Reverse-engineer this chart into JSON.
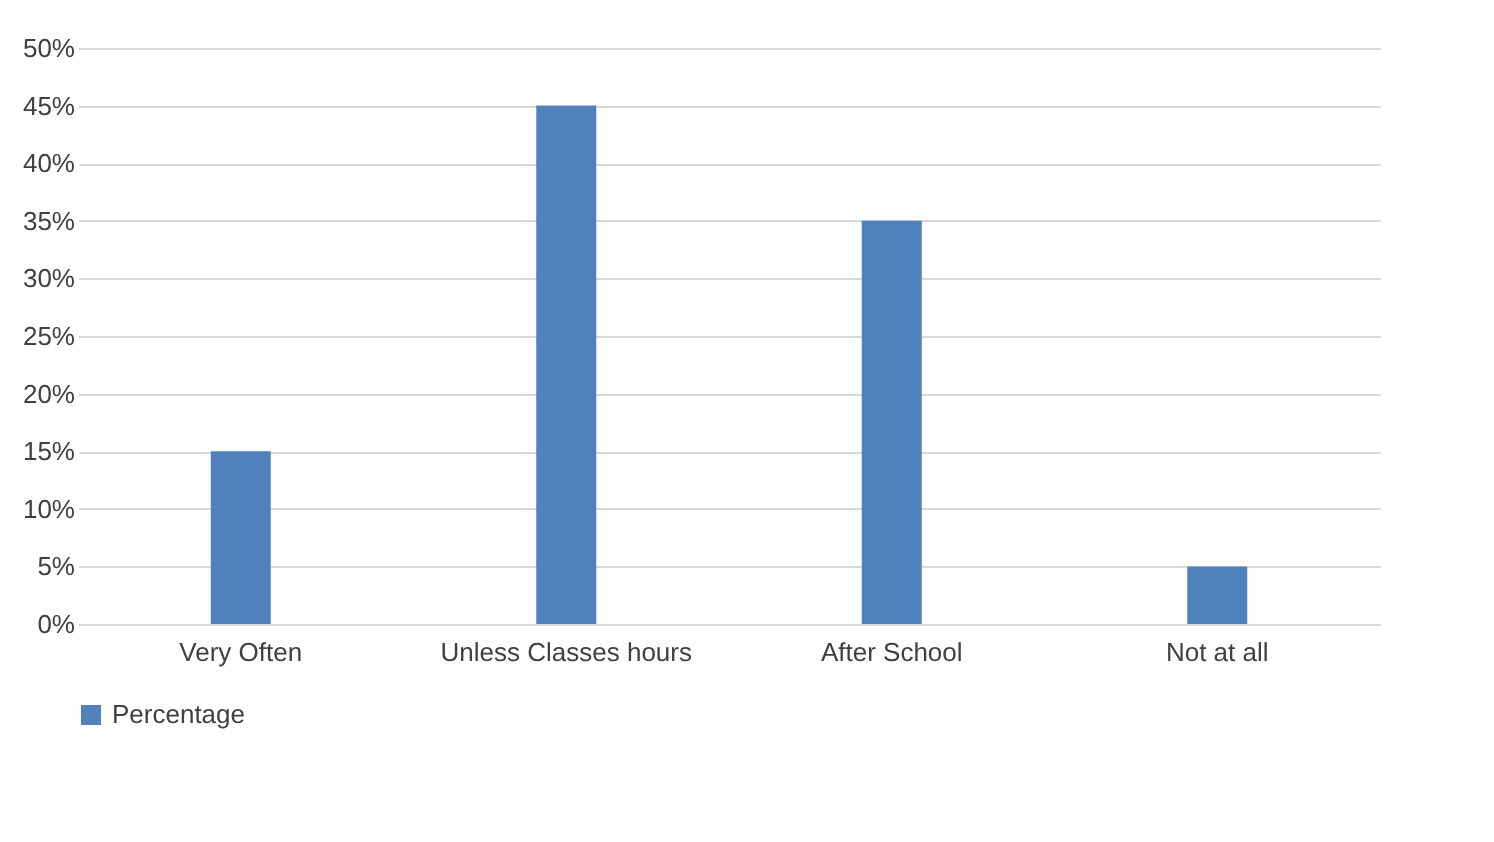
{
  "chart_data": {
    "type": "bar",
    "categories": [
      "Very Often",
      "Unless Classes hours",
      "After School",
      "Not at all"
    ],
    "series": [
      {
        "name": "Percentage",
        "color": "#4f81bd",
        "values": [
          15,
          45,
          35,
          5
        ]
      }
    ],
    "ylim": [
      0,
      50
    ],
    "yticks": [
      {
        "value": 0,
        "label": "0%"
      },
      {
        "value": 5,
        "label": "5%"
      },
      {
        "value": 10,
        "label": "10%"
      },
      {
        "value": 15,
        "label": "15%"
      },
      {
        "value": 20,
        "label": "20%"
      },
      {
        "value": 25,
        "label": "25%"
      },
      {
        "value": 30,
        "label": "30%"
      },
      {
        "value": 35,
        "label": "35%"
      },
      {
        "value": 40,
        "label": "40%"
      },
      {
        "value": 45,
        "label": "45%"
      },
      {
        "value": 50,
        "label": "50%"
      }
    ],
    "grid": "y",
    "legend": "bottom"
  }
}
